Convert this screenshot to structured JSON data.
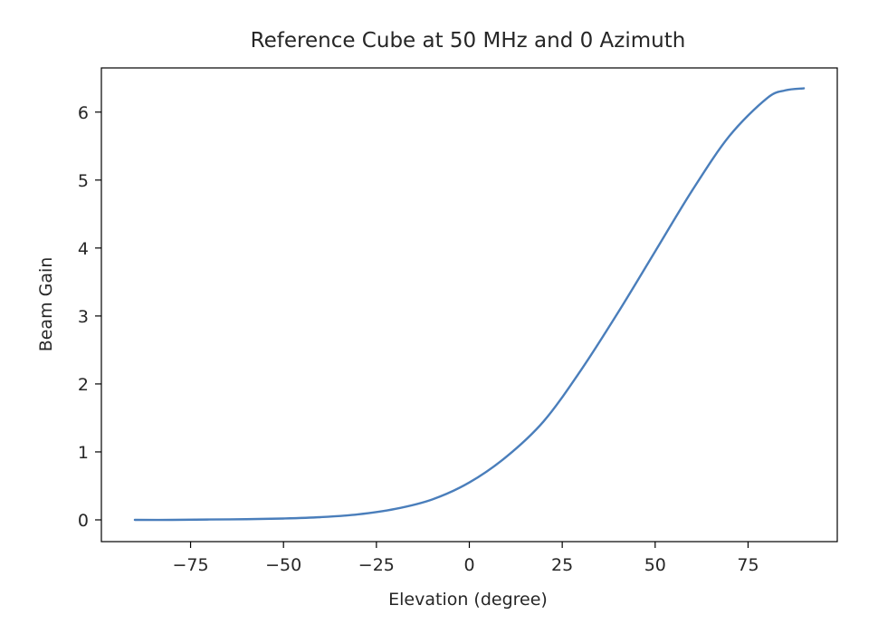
{
  "chart_data": {
    "type": "line",
    "title": "Reference Cube at 50 MHz and 0 Azimuth",
    "xlabel": "Elevation (degree)",
    "ylabel": "Beam Gain",
    "xlim": [
      -99,
      99
    ],
    "ylim": [
      -0.32,
      6.65
    ],
    "xticks": [
      -75,
      -50,
      -25,
      0,
      25,
      50,
      75
    ],
    "xtick_labels": [
      "−75",
      "−50",
      "−25",
      "0",
      "25",
      "50",
      "75"
    ],
    "yticks": [
      0,
      1,
      2,
      3,
      4,
      5,
      6
    ],
    "ytick_labels": [
      "0",
      "1",
      "2",
      "3",
      "4",
      "5",
      "6"
    ],
    "grid": false,
    "legend": false,
    "line_color": "#4a7ebb",
    "series": [
      {
        "x": [
          -90,
          -80,
          -70,
          -60,
          -50,
          -40,
          -30,
          -20,
          -10,
          0,
          10,
          20,
          30,
          40,
          50,
          60,
          70,
          80,
          85,
          90
        ],
        "values": [
          0.0,
          0.0,
          0.005,
          0.01,
          0.02,
          0.04,
          0.08,
          0.16,
          0.3,
          0.55,
          0.93,
          1.45,
          2.2,
          3.05,
          3.95,
          4.85,
          5.65,
          6.2,
          6.32,
          6.35
        ]
      }
    ]
  }
}
